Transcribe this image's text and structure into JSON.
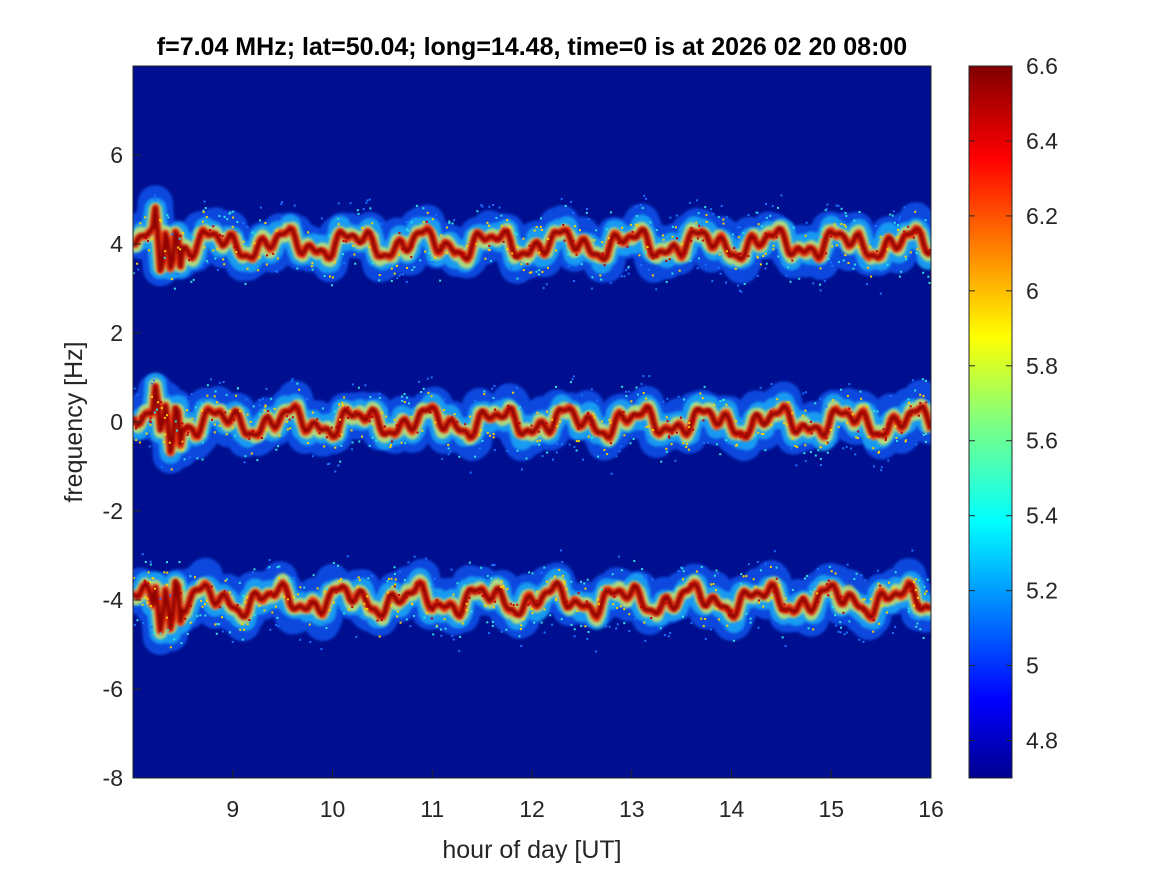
{
  "chart_data": {
    "type": "heatmap",
    "title": "f=7.04 MHz;  lat=50.04; long=14.48, time=0 is at 2026 02 20 08:00",
    "xlabel": "hour of day [UT]",
    "ylabel": "frequency [Hz]",
    "xlim": [
      8,
      16
    ],
    "ylim": [
      -8,
      8
    ],
    "x_ticks": [
      "9",
      "10",
      "11",
      "12",
      "13",
      "14",
      "15",
      "16"
    ],
    "x_tick_values": [
      9,
      10,
      11,
      12,
      13,
      14,
      15,
      16
    ],
    "y_ticks": [
      "6",
      "4",
      "2",
      "0",
      "-2",
      "-4",
      "-6",
      "-8"
    ],
    "y_tick_values": [
      6,
      4,
      2,
      0,
      -2,
      -4,
      -6,
      -8
    ],
    "colorbar": {
      "range": [
        4.7,
        6.6
      ],
      "ticks": [
        "6.6",
        "6.4",
        "6.2",
        "6",
        "5.8",
        "5.6",
        "5.4",
        "5.2",
        "5",
        "4.8"
      ],
      "tick_values": [
        6.6,
        6.4,
        6.2,
        6.0,
        5.8,
        5.6,
        5.4,
        5.2,
        5.0,
        4.8
      ],
      "colormap": "jet"
    },
    "series": [
      {
        "center_hz": 4,
        "intensity_peak": 6.6,
        "background": 4.7
      },
      {
        "center_hz": 0,
        "intensity_peak": 6.6,
        "background": 4.7
      },
      {
        "center_hz": -4,
        "intensity_peak": 6.6,
        "background": 4.7
      }
    ],
    "background_color": "#000f8f",
    "grid": false
  }
}
